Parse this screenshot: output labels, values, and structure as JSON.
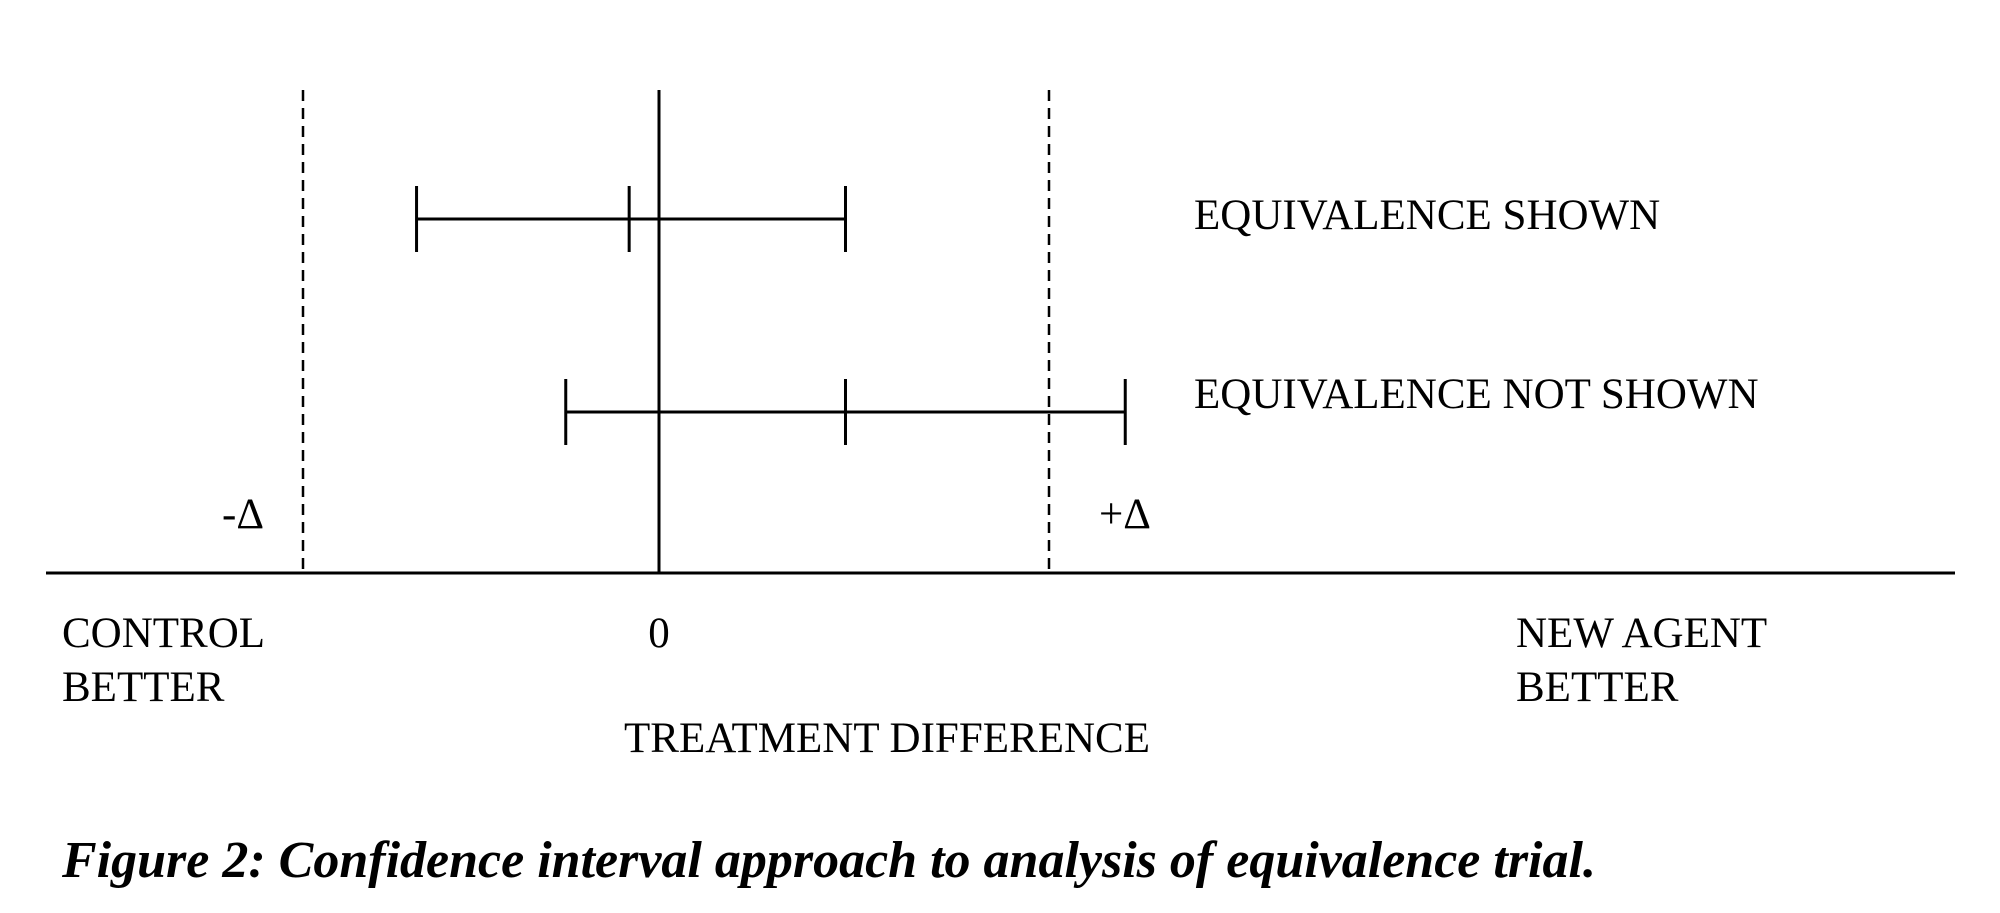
{
  "diagram": {
    "margin_lower_label": "-Δ",
    "margin_upper_label": "+Δ",
    "zero_label": "0",
    "left_label_line1": "CONTROL",
    "left_label_line2": "BETTER",
    "right_label_line1": "NEW AGENT",
    "right_label_line2": "BETTER",
    "axis_title": "TREATMENT DIFFERENCE",
    "intervals": [
      {
        "label": "EQUIVALENCE SHOWN",
        "lower": -0.65,
        "estimate": -0.08,
        "upper": 0.5
      },
      {
        "label": "EQUIVALENCE NOT SHOWN",
        "lower": -0.25,
        "estimate": 0.5,
        "upper": 1.25
      }
    ],
    "margin": 1.0
  },
  "caption": "Figure 2:  Confidence interval approach to analysis of equivalence trial."
}
